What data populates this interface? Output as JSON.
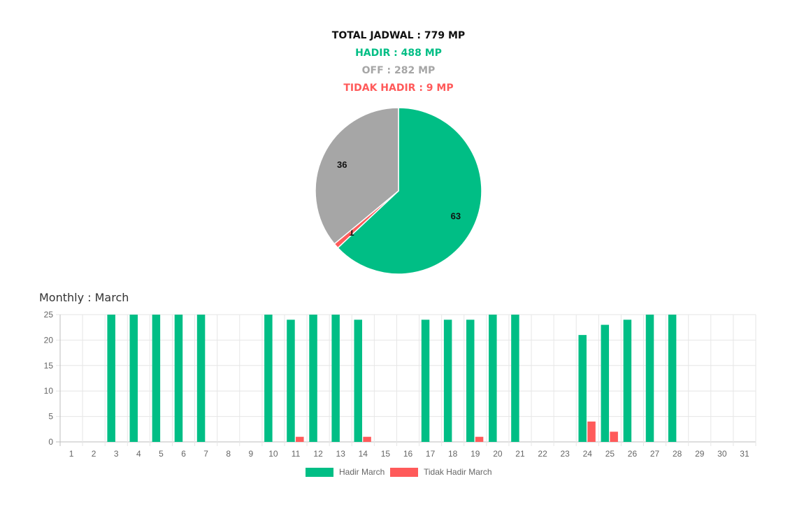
{
  "colors": {
    "hadir": "#00be85",
    "off": "#a6a6a6",
    "tidak": "#ff5a5a",
    "total": "#111111"
  },
  "summary": {
    "total": "TOTAL JADWAL : 779 MP",
    "hadir": "HADIR : 488 MP",
    "off": "OFF : 282 MP",
    "tidak_hadir": "TIDAK HADIR : 9 MP"
  },
  "monthly_title": "Monthly : March",
  "chart_data": [
    {
      "type": "pie",
      "slices": [
        {
          "label": "63",
          "value": 63,
          "color": "#00be85"
        },
        {
          "label": "1",
          "value": 1,
          "color": "#ff5a5a"
        },
        {
          "label": "36",
          "value": 36,
          "color": "#a6a6a6"
        }
      ]
    },
    {
      "type": "bar",
      "categories": [
        "1",
        "2",
        "3",
        "4",
        "5",
        "6",
        "7",
        "8",
        "9",
        "10",
        "11",
        "12",
        "13",
        "14",
        "15",
        "16",
        "17",
        "18",
        "19",
        "20",
        "21",
        "22",
        "23",
        "24",
        "25",
        "26",
        "27",
        "28",
        "29",
        "30",
        "31"
      ],
      "series": [
        {
          "name": "Hadir March",
          "color": "#00be85",
          "values": [
            0,
            0,
            25,
            25,
            25,
            25,
            25,
            0,
            0,
            25,
            24,
            25,
            25,
            24,
            0,
            0,
            24,
            24,
            24,
            25,
            25,
            0,
            0,
            21,
            23,
            24,
            25,
            25,
            0,
            0,
            0
          ]
        },
        {
          "name": "Tidak Hadir March",
          "color": "#ff5a5a",
          "values": [
            0,
            0,
            0,
            0,
            0,
            0,
            0,
            0,
            0,
            0,
            1,
            0,
            0,
            1,
            0,
            0,
            0,
            0,
            1,
            0,
            0,
            0,
            0,
            4,
            2,
            0,
            0,
            0,
            0,
            0,
            0
          ]
        }
      ],
      "ylim": [
        0,
        25
      ],
      "yticks": [
        "0",
        "5",
        "10",
        "15",
        "20",
        "25"
      ],
      "grid": true,
      "legend": "bottom"
    }
  ]
}
